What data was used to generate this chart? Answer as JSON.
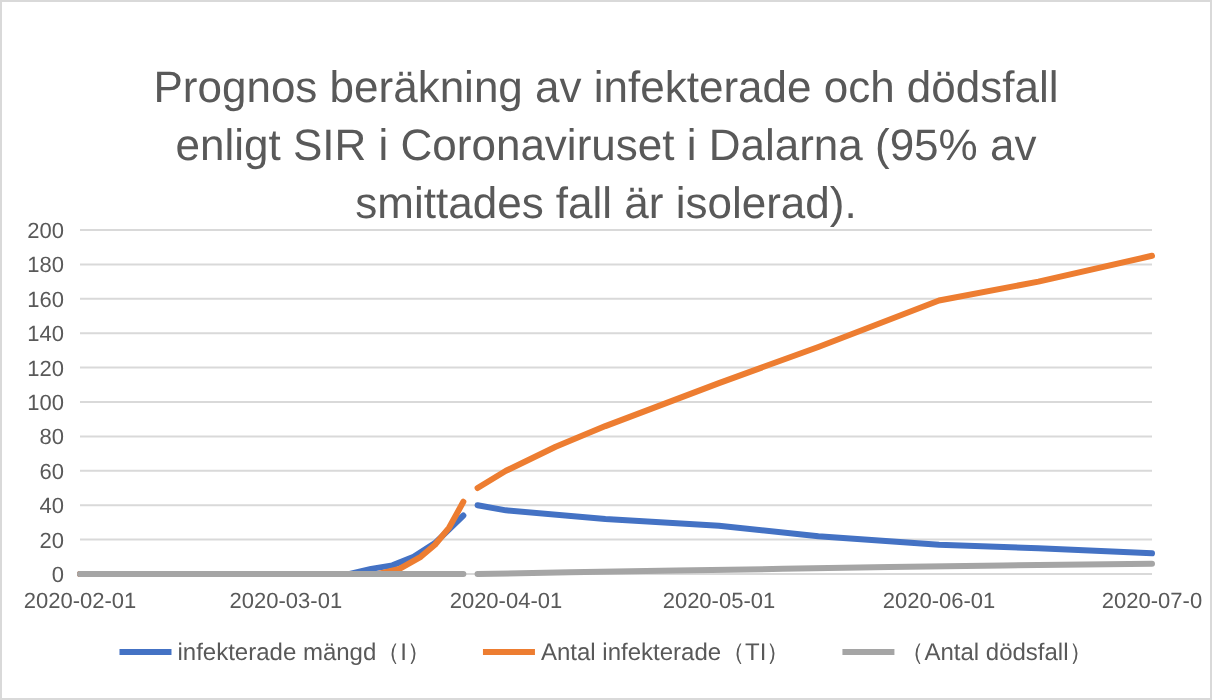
{
  "chart_data": {
    "type": "line",
    "title": "Prognos beräkning av infekterade och dödsfall\nenligt SIR i Coronaviruset i Dalarna (95% av\nsmittades fall är isolerad).",
    "xlim": [
      "2020-02-01",
      "2020-07-01"
    ],
    "xticks": [
      "2020-02-01",
      "2020-03-01",
      "2020-04-01",
      "2020-05-01",
      "2020-06-01",
      {
        "value": "2020-07-01",
        "label": "2020-07-0"
      }
    ],
    "ylim": [
      0,
      200
    ],
    "yticks": [
      0,
      20,
      40,
      60,
      80,
      100,
      120,
      140,
      160,
      180,
      200
    ],
    "grid": "y",
    "legend": "bottom",
    "marker": "none",
    "line_style": "solid",
    "series": [
      {
        "name": "infekterade mängd（I）",
        "color": "#4472c4",
        "x": [
          "2020-02-01",
          "2020-03-10",
          "2020-03-13",
          "2020-03-16",
          "2020-03-19",
          "2020-03-22",
          "2020-03-24",
          "2020-03-26",
          "2020-03-27",
          "2020-03-28",
          "2020-04-01",
          "2020-04-15",
          "2020-05-01",
          "2020-05-15",
          "2020-06-01",
          "2020-06-15",
          "2020-07-01"
        ],
        "values": [
          0,
          0,
          3,
          5,
          10,
          18,
          26,
          34,
          null,
          40,
          37,
          32,
          28,
          22,
          17,
          15,
          12
        ]
      },
      {
        "name": "Antal infekterade（TI）",
        "color": "#ed7d31",
        "x": [
          "2020-02-01",
          "2020-03-14",
          "2020-03-17",
          "2020-03-20",
          "2020-03-22",
          "2020-03-24",
          "2020-03-26",
          "2020-03-27",
          "2020-03-28",
          "2020-04-01",
          "2020-04-08",
          "2020-04-15",
          "2020-05-01",
          "2020-05-15",
          "2020-06-01",
          "2020-06-15",
          "2020-07-01"
        ],
        "values": [
          0,
          0,
          3,
          10,
          17,
          27,
          42,
          null,
          50,
          60,
          74,
          86,
          111,
          132,
          159,
          170,
          185
        ]
      },
      {
        "name": "（Antal dödsfall）",
        "color": "#a5a5a5",
        "x": [
          "2020-02-01",
          "2020-03-26",
          "2020-03-27",
          "2020-03-28",
          "2020-04-10",
          "2020-04-25",
          "2020-05-10",
          "2020-05-25",
          "2020-06-10",
          "2020-07-01"
        ],
        "values": [
          0,
          0,
          null,
          0,
          1,
          2,
          3,
          4,
          5,
          6
        ]
      }
    ]
  }
}
